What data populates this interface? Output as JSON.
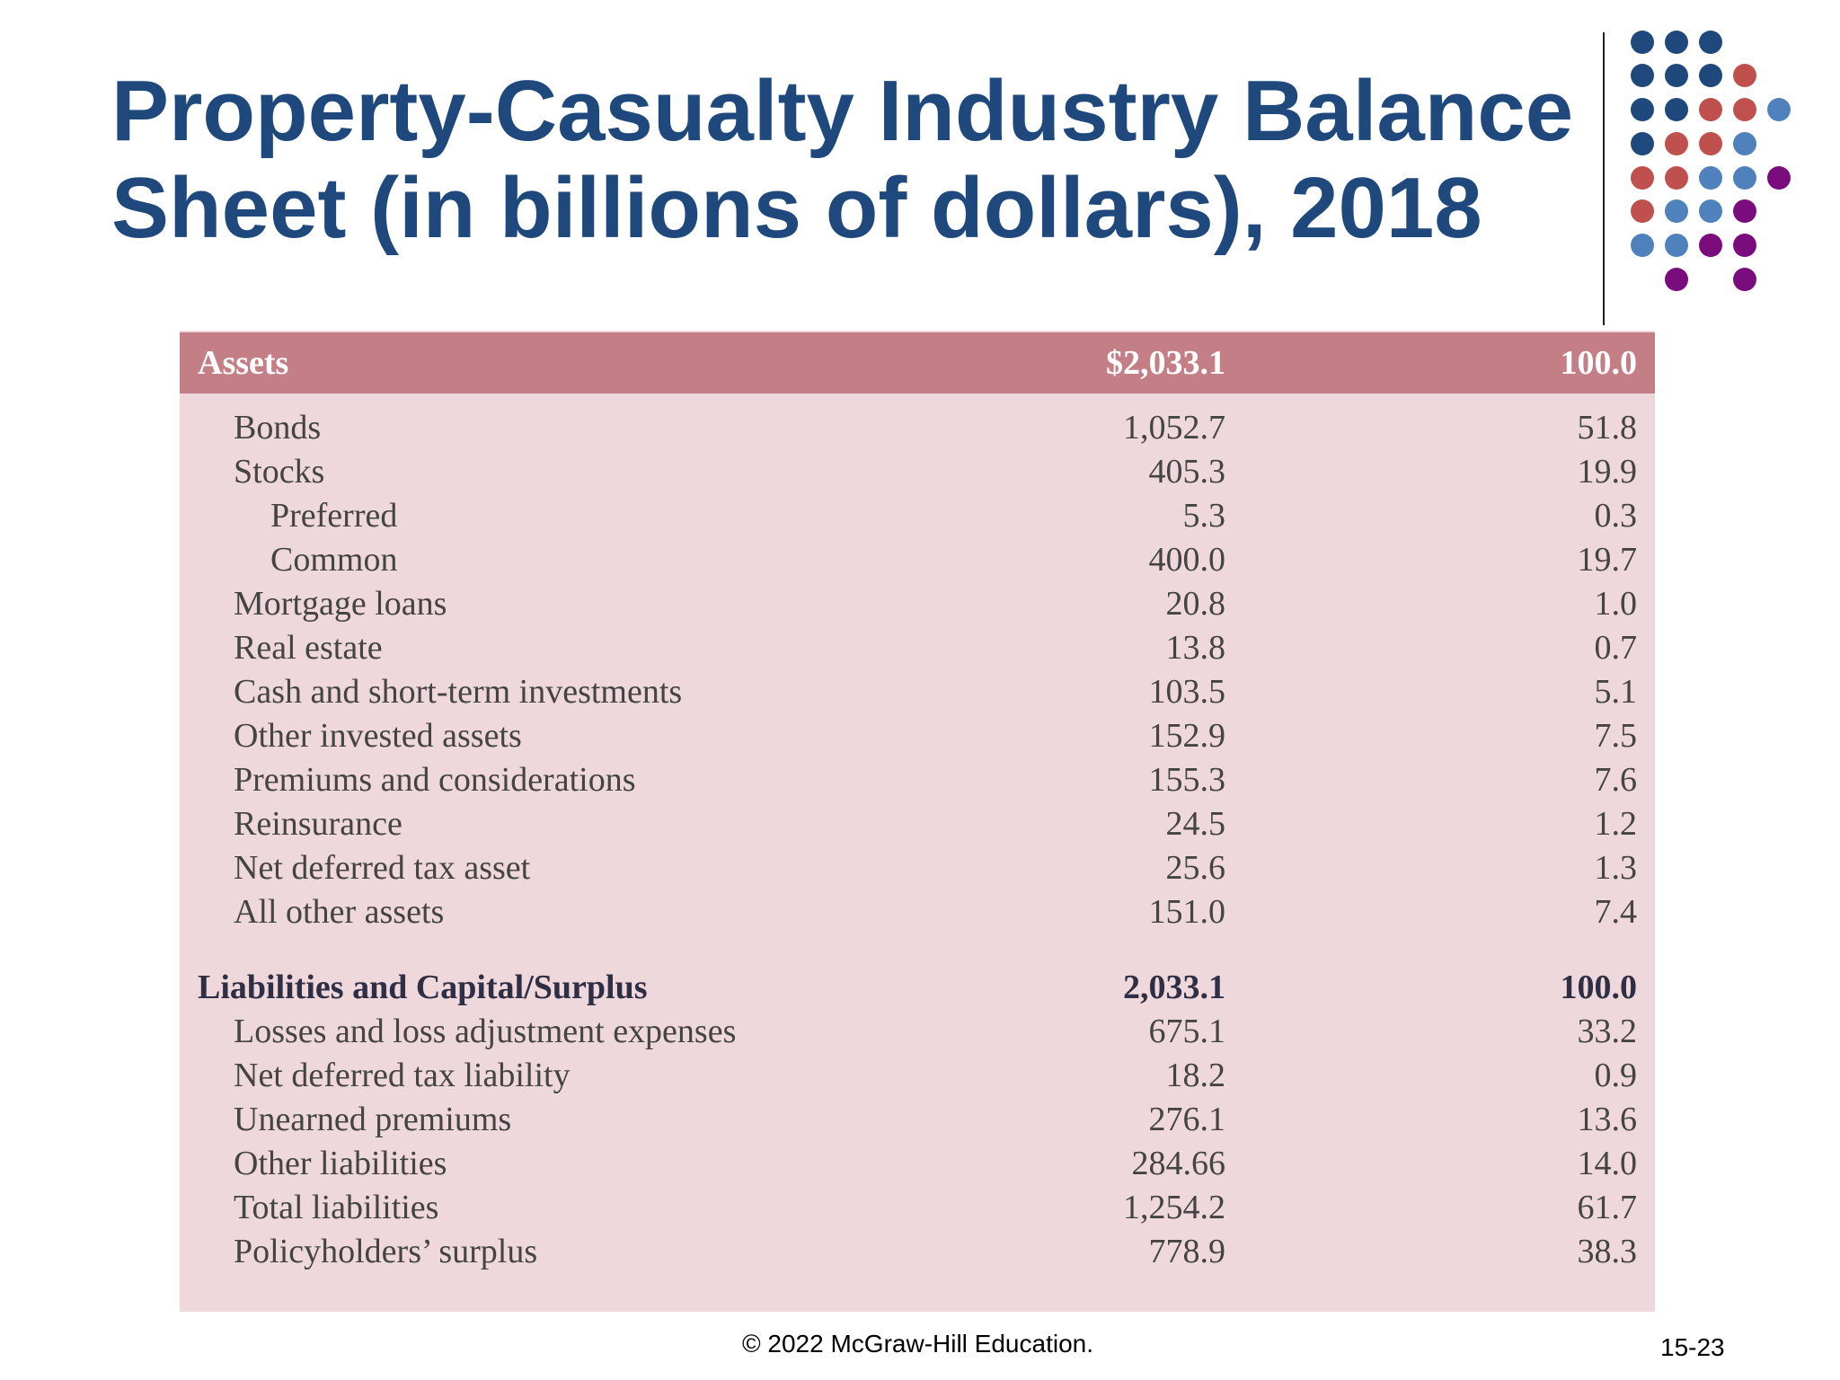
{
  "title": {
    "line1": "Property-Casualty Industry Balance",
    "line2": "Sheet (in billions of dollars), 2018"
  },
  "decor": {
    "dot_colors": [
      "#1f497d",
      "#c0504d",
      "#4f81bd",
      "#7b0c7e"
    ]
  },
  "table": {
    "header": {
      "label": "Assets",
      "value": "$2,033.1",
      "percent": "100.0"
    },
    "asset_rows": [
      {
        "label": "Bonds",
        "value": "1,052.7",
        "percent": "51.8"
      },
      {
        "label": "Stocks",
        "value": "405.3",
        "percent": "19.9"
      },
      {
        "label": "Preferred",
        "value": "5.3",
        "percent": "0.3"
      },
      {
        "label": "Common",
        "value": "400.0",
        "percent": "19.7"
      },
      {
        "label": "Mortgage loans",
        "value": "20.8",
        "percent": "1.0"
      },
      {
        "label": "Real estate",
        "value": "13.8",
        "percent": "0.7"
      },
      {
        "label": "Cash and short-term investments",
        "value": "103.5",
        "percent": "5.1"
      },
      {
        "label": "Other invested assets",
        "value": "152.9",
        "percent": "7.5"
      },
      {
        "label": "Premiums and considerations",
        "value": "155.3",
        "percent": "7.6"
      },
      {
        "label": "Reinsurance",
        "value": "24.5",
        "percent": "1.2"
      },
      {
        "label": "Net deferred tax asset",
        "value": "25.6",
        "percent": "1.3"
      },
      {
        "label": "All other assets",
        "value": "151.0",
        "percent": "7.4"
      }
    ],
    "liabilities_header": {
      "label": "Liabilities and Capital/Surplus",
      "value": "2,033.1",
      "percent": "100.0"
    },
    "liability_rows": [
      {
        "label": "Losses and loss adjustment expenses",
        "value": "675.1",
        "percent": "33.2"
      },
      {
        "label": "Net deferred tax liability",
        "value": "18.2",
        "percent": "0.9"
      },
      {
        "label": "Unearned premiums",
        "value": "276.1",
        "percent": "13.6"
      },
      {
        "label": "Other liabilities",
        "value": "284.66",
        "percent": "14.0"
      },
      {
        "label": "Total liabilities",
        "value": "1,254.2",
        "percent": "61.7"
      },
      {
        "label": "Policyholders’ surplus",
        "value": "778.9",
        "percent": "38.3"
      }
    ]
  },
  "footer": {
    "copyright": "© 2022 McGraw-Hill Education.",
    "page_number": "15-23"
  }
}
